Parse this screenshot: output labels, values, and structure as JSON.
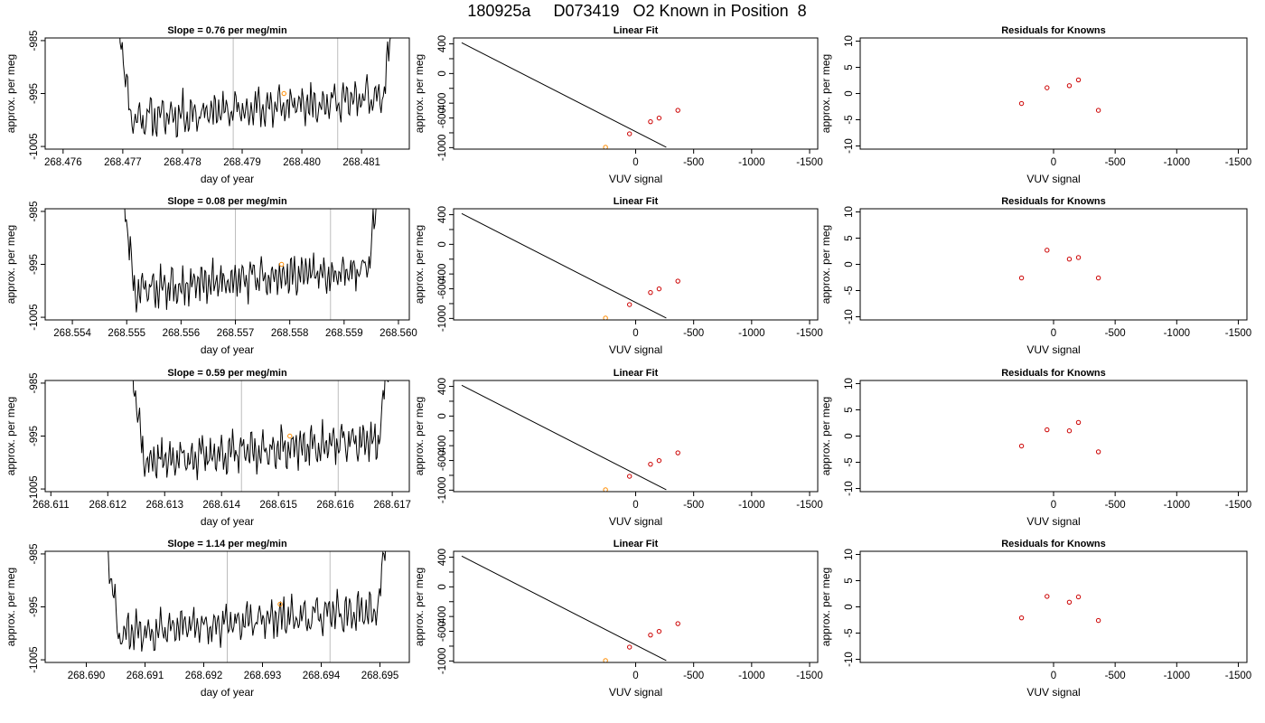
{
  "figure_title": "180925a     D073419   O2 Known in Position  8",
  "colors": {
    "series": "#000000",
    "reference_points": "#cc0000",
    "highlight": "#ff8c00",
    "vertical_markers": "#bdbdbd",
    "frame": "#000000"
  },
  "chart_data": [
    {
      "type": "line",
      "row": 1,
      "panel": "time-series",
      "title": "Slope =  0.76  per meg/min",
      "xlabel": "day of year",
      "ylabel": "approx. per meg",
      "xlim": [
        268.4757,
        268.4818
      ],
      "ylim": [
        -1005.5,
        -984.5
      ],
      "xticks": [
        268.476,
        268.477,
        268.478,
        268.479,
        268.48,
        268.481
      ],
      "xtick_labels": [
        "268.476",
        "268.477",
        "268.478",
        "268.479",
        "268.480",
        "268.481"
      ],
      "yticks": [
        -1005,
        -995,
        -985
      ],
      "ytick_labels": [
        "-1005",
        "-995",
        "-985"
      ],
      "x_start": 268.4769,
      "x_end": 268.4816,
      "trace_seed": 11,
      "vertical_lines": [
        268.47885,
        268.4806
      ],
      "highlight_point": {
        "x": 268.4797,
        "y": -995.0
      },
      "grid": false
    },
    {
      "type": "scatter-fit",
      "row": 1,
      "panel": "linear-fit",
      "title": "Linear Fit",
      "xlabel": "VUV signal",
      "ylabel": "approx. per meg",
      "xlim": [
        1570,
        -1570
      ],
      "ylim": [
        -1020,
        480
      ],
      "xticks": [
        -1500,
        -1000,
        -500,
        0
      ],
      "xtick_labels": [
        "-1500",
        "-1000",
        "-500",
        "0"
      ],
      "yticks": [
        -1000,
        -800,
        -600,
        -400,
        -200,
        0,
        200,
        400
      ],
      "ytick_labels": [
        "-1000",
        "",
        "-600",
        "-400",
        "",
        "0",
        "",
        "400"
      ],
      "fit_line": {
        "x": [
          1500,
          -264
        ],
        "y": [
          415,
          -995
        ]
      },
      "points": {
        "x": [
          -364,
          -202,
          -128,
          53,
          260
        ],
        "y": [
          -496,
          -601,
          -650,
          -813,
          -995
        ]
      },
      "grid": false
    },
    {
      "type": "scatter",
      "row": 1,
      "panel": "residuals",
      "title": "Residuals for Knowns",
      "xlabel": "VUV signal",
      "ylabel": "approx. per meg",
      "xlim": [
        1570,
        -1570
      ],
      "ylim": [
        -10.6,
        10.6
      ],
      "xticks": [
        -1500,
        -1000,
        -500,
        0
      ],
      "xtick_labels": [
        "-1500",
        "-1000",
        "-500",
        "0"
      ],
      "yticks": [
        -10,
        -5,
        0,
        5,
        10
      ],
      "ytick_labels": [
        "-10",
        "-5",
        "0",
        "5",
        "10"
      ],
      "points": {
        "x": [
          -364,
          -202,
          -128,
          53,
          260
        ],
        "y": [
          -3.2,
          2.6,
          1.5,
          1.1,
          -1.9
        ]
      },
      "grid": false
    },
    {
      "type": "line",
      "row": 2,
      "panel": "time-series",
      "title": "Slope =  0.08  per meg/min",
      "xlabel": "day of year",
      "ylabel": "approx. per meg",
      "xlim": [
        268.5535,
        268.5602
      ],
      "ylim": [
        -1005.5,
        -984.5
      ],
      "xticks": [
        268.554,
        268.555,
        268.556,
        268.557,
        268.558,
        268.559,
        268.56
      ],
      "xtick_labels": [
        "268.554",
        "268.555",
        "268.556",
        "268.557",
        "268.558",
        "268.559",
        "268.560"
      ],
      "yticks": [
        -1005,
        -995,
        -985
      ],
      "ytick_labels": [
        "-1005",
        "-995",
        "-985"
      ],
      "x_start": 268.5549,
      "x_end": 268.5597,
      "trace_seed": 23,
      "vertical_lines": [
        268.557,
        268.55875
      ],
      "highlight_point": {
        "x": 268.55785,
        "y": -995.0
      },
      "grid": false
    },
    {
      "type": "scatter-fit",
      "row": 2,
      "panel": "linear-fit",
      "title": "Linear Fit",
      "xlabel": "VUV signal",
      "ylabel": "approx. per meg",
      "xlim": [
        1570,
        -1570
      ],
      "ylim": [
        -1020,
        480
      ],
      "xticks": [
        -1500,
        -1000,
        -500,
        0
      ],
      "xtick_labels": [
        "-1500",
        "-1000",
        "-500",
        "0"
      ],
      "yticks": [
        -1000,
        -800,
        -600,
        -400,
        -200,
        0,
        200,
        400
      ],
      "ytick_labels": [
        "-1000",
        "",
        "-600",
        "-400",
        "",
        "0",
        "",
        "400"
      ],
      "fit_line": {
        "x": [
          1500,
          -264
        ],
        "y": [
          415,
          -995
        ]
      },
      "points": {
        "x": [
          -364,
          -202,
          -128,
          53,
          260
        ],
        "y": [
          -496,
          -601,
          -650,
          -813,
          -995
        ]
      },
      "grid": false
    },
    {
      "type": "scatter",
      "row": 2,
      "panel": "residuals",
      "title": "Residuals for Knowns",
      "xlabel": "VUV signal",
      "ylabel": "approx. per meg",
      "xlim": [
        1570,
        -1570
      ],
      "ylim": [
        -10.6,
        10.6
      ],
      "xticks": [
        -1500,
        -1000,
        -500,
        0
      ],
      "xtick_labels": [
        "-1500",
        "-1000",
        "-500",
        "0"
      ],
      "yticks": [
        -10,
        -5,
        0,
        5,
        10
      ],
      "ytick_labels": [
        "-10",
        "-5",
        "0",
        "5",
        "10"
      ],
      "points": {
        "x": [
          -364,
          -202,
          -128,
          53,
          260
        ],
        "y": [
          -2.6,
          1.3,
          1.0,
          2.7,
          -2.6
        ]
      },
      "grid": false
    },
    {
      "type": "line",
      "row": 3,
      "panel": "time-series",
      "title": "Slope =  0.59  per meg/min",
      "xlabel": "day of year",
      "ylabel": "approx. per meg",
      "xlim": [
        268.6109,
        268.6173
      ],
      "ylim": [
        -1005.5,
        -984.5
      ],
      "xticks": [
        268.611,
        268.612,
        268.613,
        268.614,
        268.615,
        268.616,
        268.617
      ],
      "xtick_labels": [
        "268.611",
        "268.612",
        "268.613",
        "268.614",
        "268.615",
        "268.616",
        "268.617"
      ],
      "yticks": [
        -1005,
        -995,
        -985
      ],
      "ytick_labels": [
        "-1005",
        "-995",
        "-985"
      ],
      "x_start": 268.6124,
      "x_end": 268.617,
      "trace_seed": 37,
      "vertical_lines": [
        268.61435,
        268.61605
      ],
      "highlight_point": {
        "x": 268.6152,
        "y": -995.0
      },
      "grid": false
    },
    {
      "type": "scatter-fit",
      "row": 3,
      "panel": "linear-fit",
      "title": "Linear Fit",
      "xlabel": "VUV signal",
      "ylabel": "approx. per meg",
      "xlim": [
        1570,
        -1570
      ],
      "ylim": [
        -1020,
        480
      ],
      "xticks": [
        -1500,
        -1000,
        -500,
        0
      ],
      "xtick_labels": [
        "-1500",
        "-1000",
        "-500",
        "0"
      ],
      "yticks": [
        -1000,
        -800,
        -600,
        -400,
        -200,
        0,
        200,
        400
      ],
      "ytick_labels": [
        "-1000",
        "",
        "-600",
        "-400",
        "",
        "0",
        "",
        "400"
      ],
      "fit_line": {
        "x": [
          1500,
          -264
        ],
        "y": [
          415,
          -995
        ]
      },
      "points": {
        "x": [
          -364,
          -202,
          -128,
          53,
          260
        ],
        "y": [
          -496,
          -601,
          -650,
          -813,
          -995
        ]
      },
      "grid": false
    },
    {
      "type": "scatter",
      "row": 3,
      "panel": "residuals",
      "title": "Residuals for Knowns",
      "xlabel": "VUV signal",
      "ylabel": "approx. per meg",
      "xlim": [
        1570,
        -1570
      ],
      "ylim": [
        -10.6,
        10.6
      ],
      "xticks": [
        -1500,
        -1000,
        -500,
        0
      ],
      "xtick_labels": [
        "-1500",
        "-1000",
        "-500",
        "0"
      ],
      "yticks": [
        -10,
        -5,
        0,
        5,
        10
      ],
      "ytick_labels": [
        "-10",
        "-5",
        "0",
        "5",
        "10"
      ],
      "points": {
        "x": [
          -364,
          -202,
          -128,
          53,
          260
        ],
        "y": [
          -3.0,
          2.6,
          1.0,
          1.2,
          -1.9
        ]
      },
      "grid": false
    },
    {
      "type": "line",
      "row": 4,
      "panel": "time-series",
      "title": "Slope =  1.14  per meg/min",
      "xlabel": "day of year",
      "ylabel": "approx. per meg",
      "xlim": [
        268.6893,
        268.6955
      ],
      "ylim": [
        -1005.5,
        -984.5
      ],
      "xticks": [
        268.69,
        268.691,
        268.692,
        268.693,
        268.694,
        268.695
      ],
      "xtick_labels": [
        "268.690",
        "268.691",
        "268.692",
        "268.693",
        "268.694",
        "268.695"
      ],
      "yticks": [
        -1005,
        -995,
        -985
      ],
      "ytick_labels": [
        "-1005",
        "-995",
        "-985"
      ],
      "x_start": 268.6903,
      "x_end": 268.6952,
      "trace_seed": 53,
      "vertical_lines": [
        268.6924,
        268.69415
      ],
      "highlight_point": {
        "x": 268.6933,
        "y": -994.5
      },
      "grid": false
    },
    {
      "type": "scatter-fit",
      "row": 4,
      "panel": "linear-fit",
      "title": "Linear Fit",
      "xlabel": "VUV signal",
      "ylabel": "approx. per meg",
      "xlim": [
        1570,
        -1570
      ],
      "ylim": [
        -1020,
        480
      ],
      "xticks": [
        -1500,
        -1000,
        -500,
        0
      ],
      "xtick_labels": [
        "-1500",
        "-1000",
        "-500",
        "0"
      ],
      "yticks": [
        -1000,
        -800,
        -600,
        -400,
        -200,
        0,
        200,
        400
      ],
      "ytick_labels": [
        "-1000",
        "",
        "-600",
        "-400",
        "",
        "0",
        "",
        "400"
      ],
      "fit_line": {
        "x": [
          1500,
          -264
        ],
        "y": [
          415,
          -995
        ]
      },
      "points": {
        "x": [
          -364,
          -202,
          -128,
          53,
          260
        ],
        "y": [
          -496,
          -601,
          -650,
          -813,
          -995
        ]
      },
      "grid": false
    },
    {
      "type": "scatter",
      "row": 4,
      "panel": "residuals",
      "title": "Residuals for Knowns",
      "xlabel": "VUV signal",
      "ylabel": "approx. per meg",
      "xlim": [
        1570,
        -1570
      ],
      "ylim": [
        -10.6,
        10.6
      ],
      "xticks": [
        -1500,
        -1000,
        -500,
        0
      ],
      "xtick_labels": [
        "-1500",
        "-1000",
        "-500",
        "0"
      ],
      "yticks": [
        -10,
        -5,
        0,
        5,
        10
      ],
      "ytick_labels": [
        "-10",
        "-5",
        "0",
        "5",
        "10"
      ],
      "points": {
        "x": [
          -364,
          -202,
          -128,
          53,
          260
        ],
        "y": [
          -2.6,
          1.9,
          0.9,
          2.0,
          -2.1
        ]
      },
      "grid": false
    }
  ]
}
